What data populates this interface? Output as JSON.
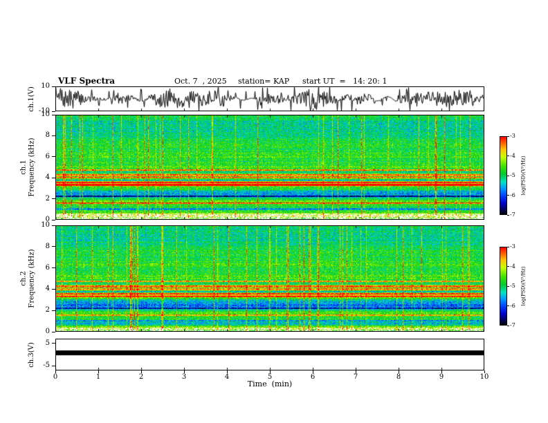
{
  "header": {
    "title": "VLF Spectra",
    "date": "Oct. 7  , 2025",
    "station": "station= KAP",
    "start_ut": "start UT  =   14: 20: 1"
  },
  "time_axis": {
    "label": "Time  (min)",
    "range": [
      0,
      10
    ],
    "ticks": [
      0,
      1,
      2,
      3,
      4,
      5,
      6,
      7,
      8,
      9,
      10
    ]
  },
  "colors": {
    "background": "#ffffff",
    "axis": "#000000",
    "trace": "#000000",
    "colormap_stops": [
      {
        "t": 0.0,
        "hex": "#000000"
      },
      {
        "t": 0.06,
        "hex": "#00005a"
      },
      {
        "t": 0.14,
        "hex": "#0000c8"
      },
      {
        "t": 0.24,
        "hex": "#0040ff"
      },
      {
        "t": 0.34,
        "hex": "#00a0ff"
      },
      {
        "t": 0.42,
        "hex": "#00e0c0"
      },
      {
        "t": 0.52,
        "hex": "#00c830"
      },
      {
        "t": 0.62,
        "hex": "#40e000"
      },
      {
        "t": 0.74,
        "hex": "#c8ff00"
      },
      {
        "t": 0.84,
        "hex": "#ffc000"
      },
      {
        "t": 0.92,
        "hex": "#ff6000"
      },
      {
        "t": 1.0,
        "hex": "#ff0000"
      }
    ]
  },
  "chart_data": [
    {
      "type": "line",
      "panel": "ch1-waveform",
      "ylabel": "ch.1(V)",
      "ylim": [
        -10,
        10
      ],
      "yticks": [
        10,
        -10
      ],
      "x_range": [
        0,
        10
      ],
      "x_unit": "min",
      "description": "Dense broadband noisy voltage waveform of channel 1, black trace oscillating roughly between -9 and +9 V for the full 10 minute record",
      "gen": {
        "seed": 7,
        "spike_prob": 0.1
      }
    },
    {
      "type": "heatmap",
      "panel": "ch1-spectrogram",
      "ylabel_line1": "ch.1",
      "ylabel_line2": "Frequency (kHz)",
      "ylim": [
        0,
        10
      ],
      "yticks": [
        0,
        2,
        4,
        6,
        8,
        10
      ],
      "x_range": [
        0,
        10
      ],
      "value_label": "log(PSD)(V²/Hz)",
      "value_range": [
        -7,
        -3
      ],
      "colorbar_ticks": [
        -3,
        -4,
        -5,
        -6,
        -7
      ],
      "description": "VLF power spectrogram ch.1: mostly green/yellow background near -4.5 to -5, bright red/yellow horizontal interference bands between 3.3 and 4.8 kHz, a cyan-blue band near 2.2-2.6 kHz, weak blue speckle above 8.5 kHz, dense red vertical sferic streaks, white data-gap speckle just above 0 kHz",
      "gen": {
        "seed": 11,
        "base": 0.54,
        "noise": 0.13,
        "bands": [
          {
            "f": 0.035,
            "amp": 0.22,
            "w": 0.03
          },
          {
            "f": 0.17,
            "amp": 0.12,
            "w": 0.025
          },
          {
            "f": 0.24,
            "amp": -0.2,
            "w": 0.04
          },
          {
            "f": 0.345,
            "amp": 0.24,
            "w": 0.03
          },
          {
            "f": 0.44,
            "amp": 0.16,
            "w": 0.025
          },
          {
            "f": 0.5,
            "amp": 0.08,
            "w": 0.02
          },
          {
            "f": 0.62,
            "amp": 0.05,
            "w": 0.04
          },
          {
            "f": 0.88,
            "amp": -0.1,
            "w": 0.1
          }
        ],
        "lines": [
          {
            "f": 0.1,
            "amp": -0.22
          },
          {
            "f": 0.155,
            "amp": 0.3
          },
          {
            "f": 0.22,
            "amp": -0.25
          },
          {
            "f": 0.33,
            "amp": 0.34
          },
          {
            "f": 0.355,
            "amp": 0.3
          },
          {
            "f": 0.375,
            "amp": -0.22
          },
          {
            "f": 0.4,
            "amp": 0.32
          },
          {
            "f": 0.425,
            "amp": 0.26
          },
          {
            "f": 0.45,
            "amp": -0.18
          },
          {
            "f": 0.475,
            "amp": 0.28
          }
        ],
        "streak_prob": 0.06,
        "streak_amp": 0.4,
        "gap_frac": 0.055,
        "gap_prob": 0.55
      }
    },
    {
      "type": "heatmap",
      "panel": "ch2-spectrogram",
      "ylabel_line1": "ch.2",
      "ylabel_line2": "Frequency (kHz)",
      "ylim": [
        0,
        10
      ],
      "yticks": [
        0,
        2,
        4,
        6,
        8,
        10
      ],
      "x_range": [
        0,
        10
      ],
      "value_label": "log(PSD)(V²/Hz)",
      "value_range": [
        -7,
        -3
      ],
      "colorbar_ticks": [
        -3,
        -4,
        -5,
        -6,
        -7
      ],
      "description": "VLF power spectrogram ch.2: similar green/yellow field with stronger cyan-blue patch around 2-3 kHz, red horizontal interference lines between 3.3 and 4.8 kHz, red vertical sferic streaks across the record, dark/blue rows below 1 kHz and thin white gap speckle just above 0 kHz",
      "gen": {
        "seed": 23,
        "base": 0.54,
        "noise": 0.13,
        "bands": [
          {
            "f": 0.035,
            "amp": 0.18,
            "w": 0.028
          },
          {
            "f": 0.07,
            "amp": -0.18,
            "w": 0.02
          },
          {
            "f": 0.17,
            "amp": 0.1,
            "w": 0.025
          },
          {
            "f": 0.25,
            "amp": -0.26,
            "w": 0.05
          },
          {
            "f": 0.345,
            "amp": 0.22,
            "w": 0.03
          },
          {
            "f": 0.44,
            "amp": 0.16,
            "w": 0.025
          },
          {
            "f": 0.52,
            "amp": 0.07,
            "w": 0.025
          },
          {
            "f": 0.65,
            "amp": 0.04,
            "w": 0.05
          },
          {
            "f": 0.9,
            "amp": -0.08,
            "w": 0.09
          }
        ],
        "lines": [
          {
            "f": 0.1,
            "amp": -0.2
          },
          {
            "f": 0.155,
            "amp": 0.28
          },
          {
            "f": 0.22,
            "amp": -0.22
          },
          {
            "f": 0.33,
            "amp": 0.32
          },
          {
            "f": 0.355,
            "amp": 0.28
          },
          {
            "f": 0.375,
            "amp": -0.2
          },
          {
            "f": 0.4,
            "amp": 0.3
          },
          {
            "f": 0.425,
            "amp": 0.24
          },
          {
            "f": 0.45,
            "amp": -0.16
          },
          {
            "f": 0.475,
            "amp": 0.26
          }
        ],
        "streak_prob": 0.055,
        "streak_amp": 0.38,
        "gap_frac": 0.035,
        "gap_prob": 0.45
      }
    },
    {
      "type": "line",
      "panel": "ch3-waveform",
      "ylabel": "ch.3(V)",
      "ylim": [
        -7,
        7
      ],
      "yticks": [
        5,
        -5
      ],
      "x_range": [
        0,
        10
      ],
      "description": "Channel 3 is clipped/saturated: drawn as a solid thick black horizontal band just above 0 V spanning the entire 10 minutes",
      "gen": {
        "v_top": 1.8,
        "v_bottom": -0.2
      }
    }
  ]
}
